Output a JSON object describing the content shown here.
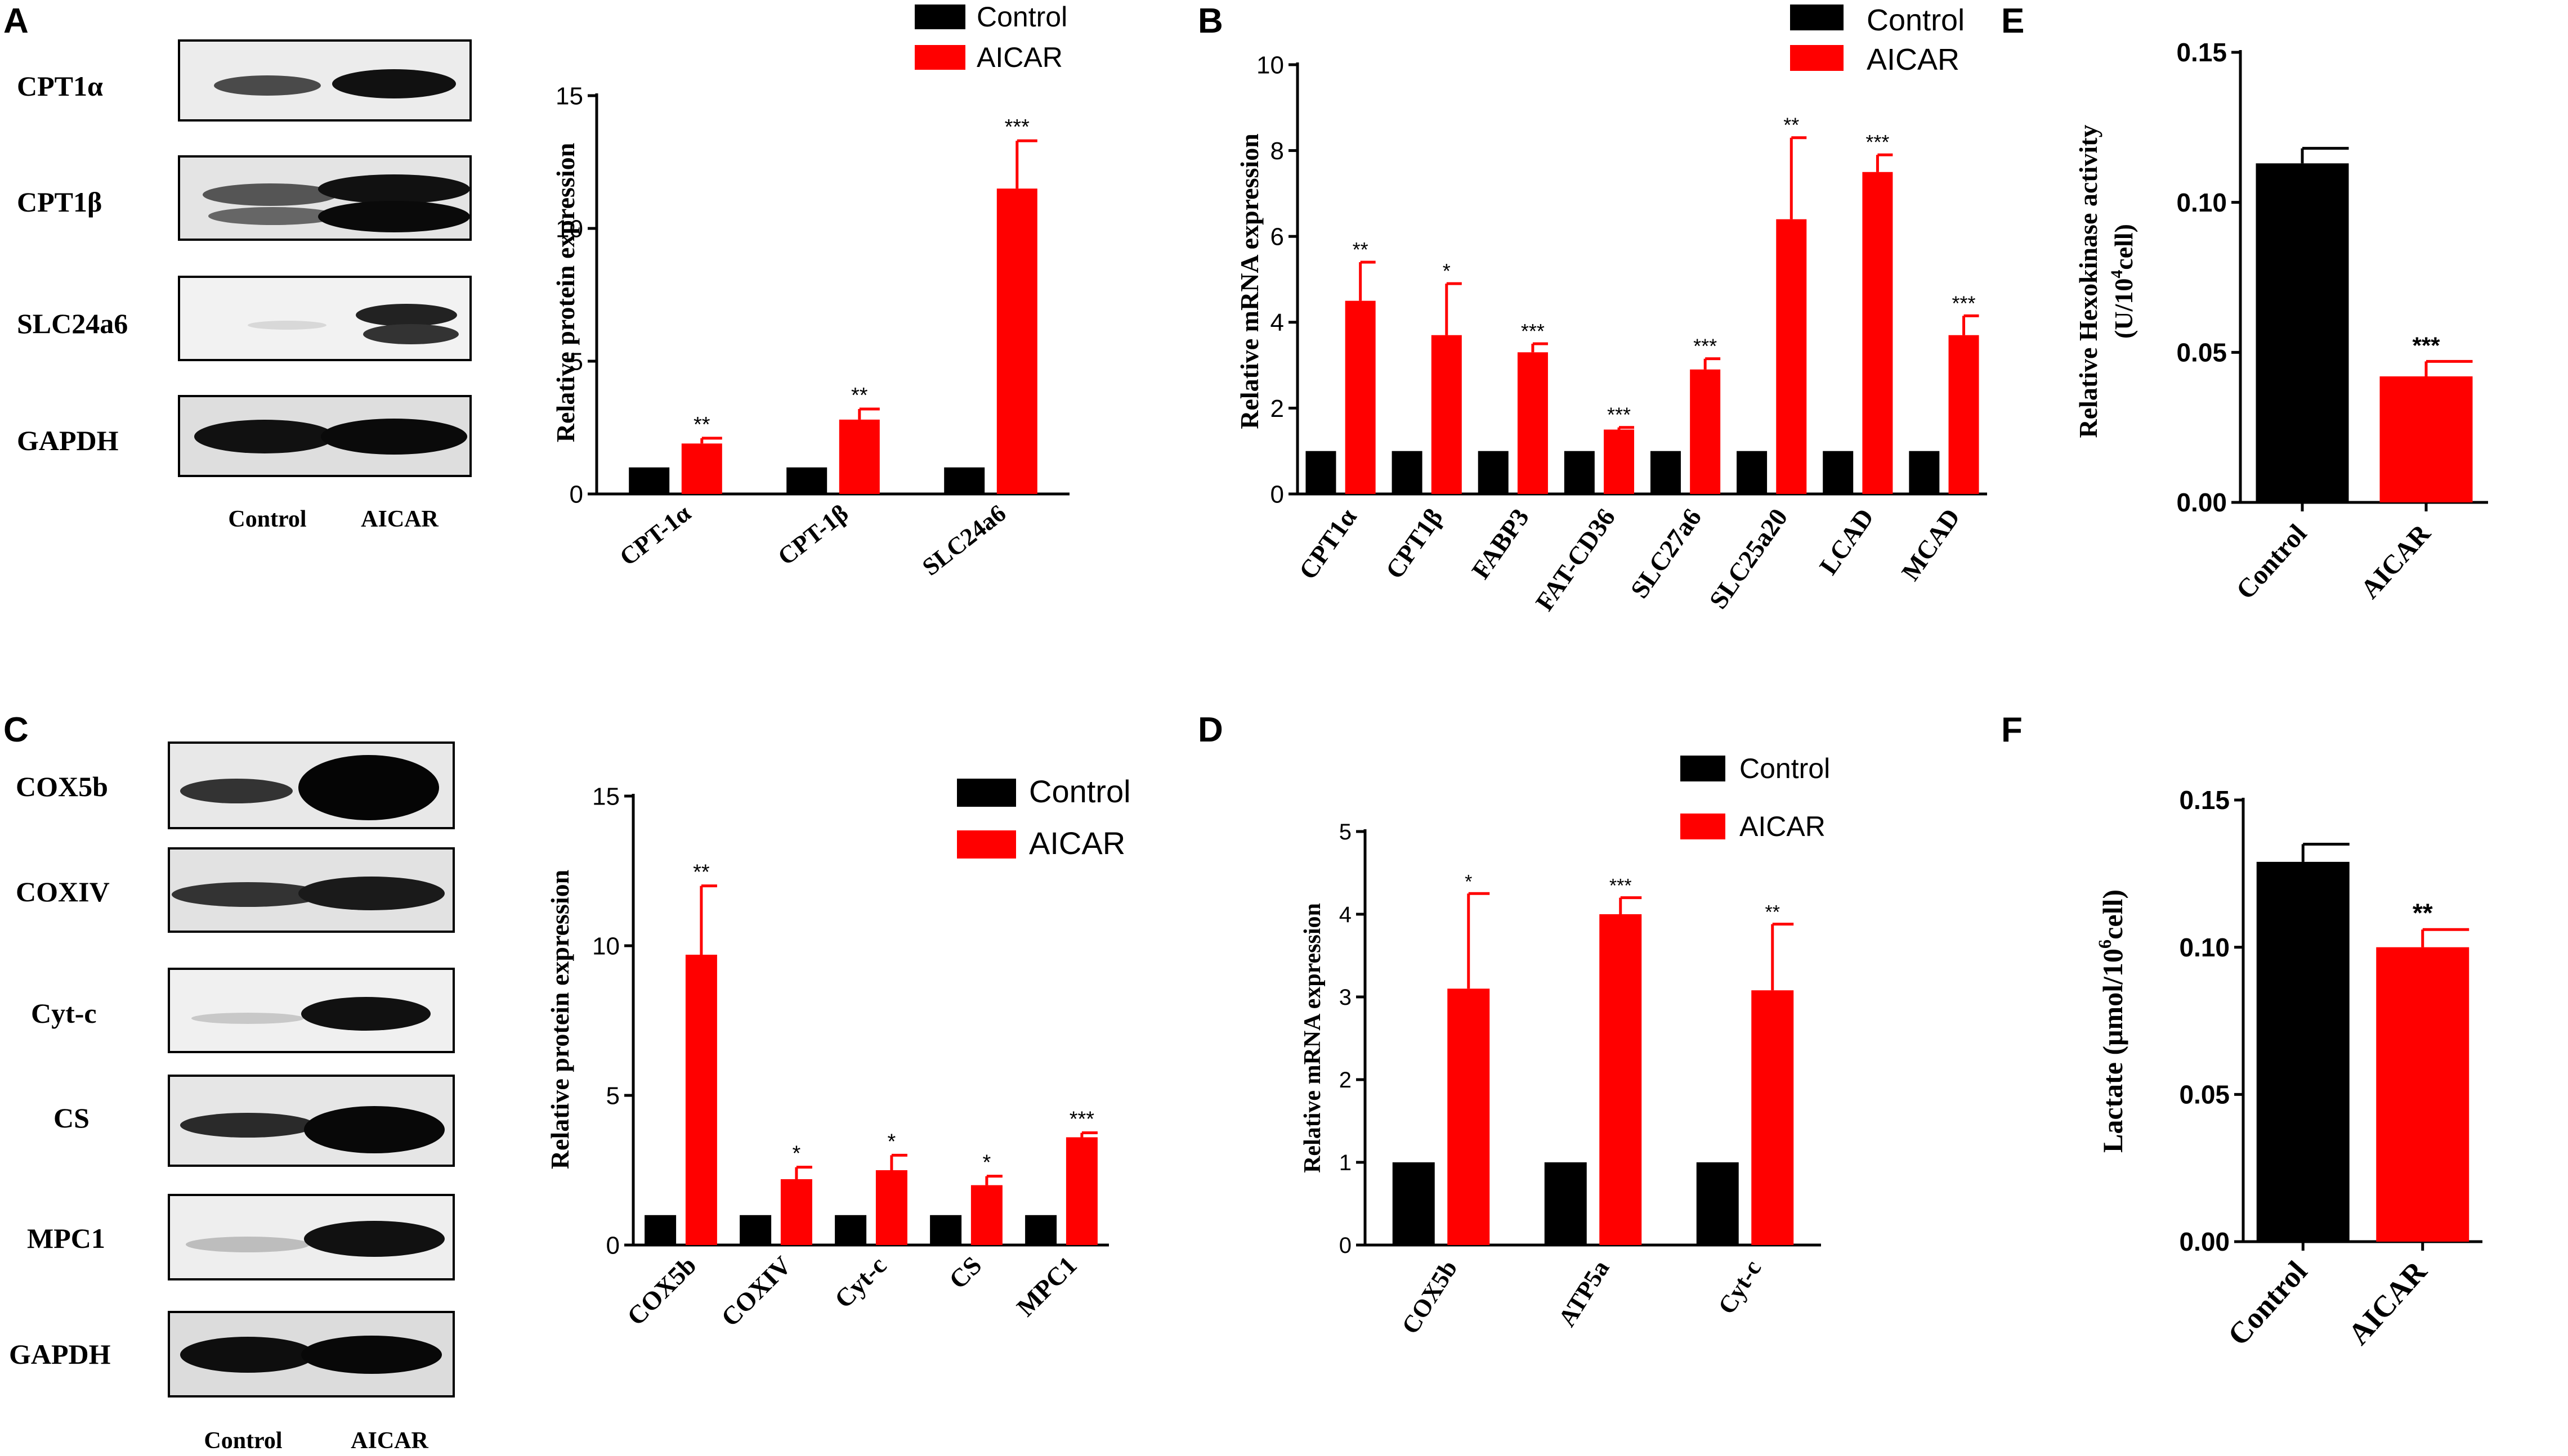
{
  "colors": {
    "control": "#000000",
    "aicar": "#ff0000",
    "axis": "#000000"
  },
  "panels": {
    "A": {
      "label": "A",
      "blot": {
        "rows": [
          "CPT1α",
          "CPT1β",
          "SLC24a6",
          "GAPDH"
        ],
        "lanes": [
          "Control",
          "AICAR"
        ]
      },
      "legend": [
        "Control",
        "AICAR"
      ]
    },
    "B": {
      "label": "B",
      "legend": [
        "Control",
        "AICAR"
      ]
    },
    "C": {
      "label": "C",
      "blot": {
        "rows": [
          "COX5b",
          "COXIV",
          "Cyt-c",
          "CS",
          "MPC1",
          "GAPDH"
        ],
        "lanes": [
          "Control",
          "AICAR"
        ]
      },
      "legend": [
        "Control",
        "AICAR"
      ]
    },
    "D": {
      "label": "D",
      "legend": [
        "Control",
        "AICAR"
      ]
    },
    "E": {
      "label": "E"
    },
    "F": {
      "label": "F"
    }
  },
  "chart_data": [
    {
      "panel": "A",
      "type": "bar",
      "ylabel": "Relative protein expression",
      "ylim": [
        0,
        15
      ],
      "yticks": [
        "0",
        "5",
        "10",
        "15"
      ],
      "categories": [
        "CPT-1α",
        "CPT-1β",
        "SLC24a6"
      ],
      "series": [
        {
          "name": "Control",
          "values": [
            1,
            1,
            1
          ],
          "errors": [
            0,
            0,
            0
          ]
        },
        {
          "name": "AICAR",
          "values": [
            1.9,
            2.8,
            11.5
          ],
          "errors": [
            0.2,
            0.4,
            1.8
          ]
        }
      ],
      "annotations": [
        "**",
        "**",
        "***"
      ]
    },
    {
      "panel": "B",
      "type": "bar",
      "ylabel": "Relative mRNA expression",
      "ylim": [
        0,
        10
      ],
      "yticks": [
        "0",
        "2",
        "4",
        "6",
        "8",
        "10"
      ],
      "categories": [
        "CPT1α",
        "CPT1β",
        "FABP3",
        "FAT-CD36",
        "SLC27a6",
        "SLC25a20",
        "LCAD",
        "MCAD"
      ],
      "series": [
        {
          "name": "Control",
          "values": [
            1,
            1,
            1,
            1,
            1,
            1,
            1,
            1
          ],
          "errors": [
            0,
            0,
            0,
            0,
            0,
            0,
            0,
            0
          ]
        },
        {
          "name": "AICAR",
          "values": [
            4.5,
            3.7,
            3.3,
            1.5,
            2.9,
            6.4,
            7.5,
            3.7
          ],
          "errors": [
            0.9,
            1.2,
            0.2,
            0.05,
            0.25,
            1.9,
            0.4,
            0.45
          ]
        }
      ],
      "annotations": [
        "**",
        "*",
        "***",
        "***",
        "***",
        "**",
        "***",
        "***"
      ]
    },
    {
      "panel": "C",
      "type": "bar",
      "ylabel": "Relative protein expression",
      "ylim": [
        0,
        15
      ],
      "yticks": [
        "0",
        "5",
        "10",
        "15"
      ],
      "categories": [
        "COX5b",
        "COXIV",
        "Cyt-c",
        "CS",
        "MPC1"
      ],
      "series": [
        {
          "name": "Control",
          "values": [
            1,
            1,
            1,
            1,
            1
          ],
          "errors": [
            0,
            0,
            0,
            0,
            0
          ]
        },
        {
          "name": "AICAR",
          "values": [
            9.7,
            2.2,
            2.5,
            2.0,
            3.6
          ],
          "errors": [
            2.3,
            0.4,
            0.5,
            0.3,
            0.15
          ]
        }
      ],
      "annotations": [
        "**",
        "*",
        "*",
        "*",
        "***"
      ]
    },
    {
      "panel": "D",
      "type": "bar",
      "ylabel": "Relative mRNA expression",
      "ylim": [
        0,
        5
      ],
      "yticks": [
        "0",
        "1",
        "2",
        "3",
        "4",
        "5"
      ],
      "categories": [
        "COX5b",
        "ATP5a",
        "Cyt-c"
      ],
      "series": [
        {
          "name": "Control",
          "values": [
            1,
            1,
            1
          ],
          "errors": [
            0,
            0,
            0
          ]
        },
        {
          "name": "AICAR",
          "values": [
            3.1,
            4.0,
            3.08
          ],
          "errors": [
            1.15,
            0.2,
            0.8
          ]
        }
      ],
      "annotations": [
        "*",
        "***",
        "**"
      ]
    },
    {
      "panel": "E",
      "type": "bar",
      "ylabel_line1": "Relative Hexokinase activity",
      "ylabel_line2_pre": "(U/10",
      "ylabel_line2_sup": "4",
      "ylabel_line2_post": "cell)",
      "ylim": [
        0,
        0.15
      ],
      "yticks": [
        "0.00",
        "0.05",
        "0.10",
        "0.15"
      ],
      "categories": [
        "Control",
        "AICAR"
      ],
      "values": [
        0.113,
        0.042
      ],
      "errors": [
        0.005,
        0.005
      ],
      "annotations": [
        "",
        "***"
      ]
    },
    {
      "panel": "F",
      "type": "bar",
      "ylabel_pre": "Lactate (μmol/10",
      "ylabel_sup": "6",
      "ylabel_post": "cell)",
      "ylim": [
        0,
        0.15
      ],
      "yticks": [
        "0.00",
        "0.05",
        "0.10",
        "0.15"
      ],
      "categories": [
        "Control",
        "AICAR"
      ],
      "values": [
        0.129,
        0.1
      ],
      "errors": [
        0.006,
        0.006
      ],
      "annotations": [
        "",
        "**"
      ]
    }
  ]
}
